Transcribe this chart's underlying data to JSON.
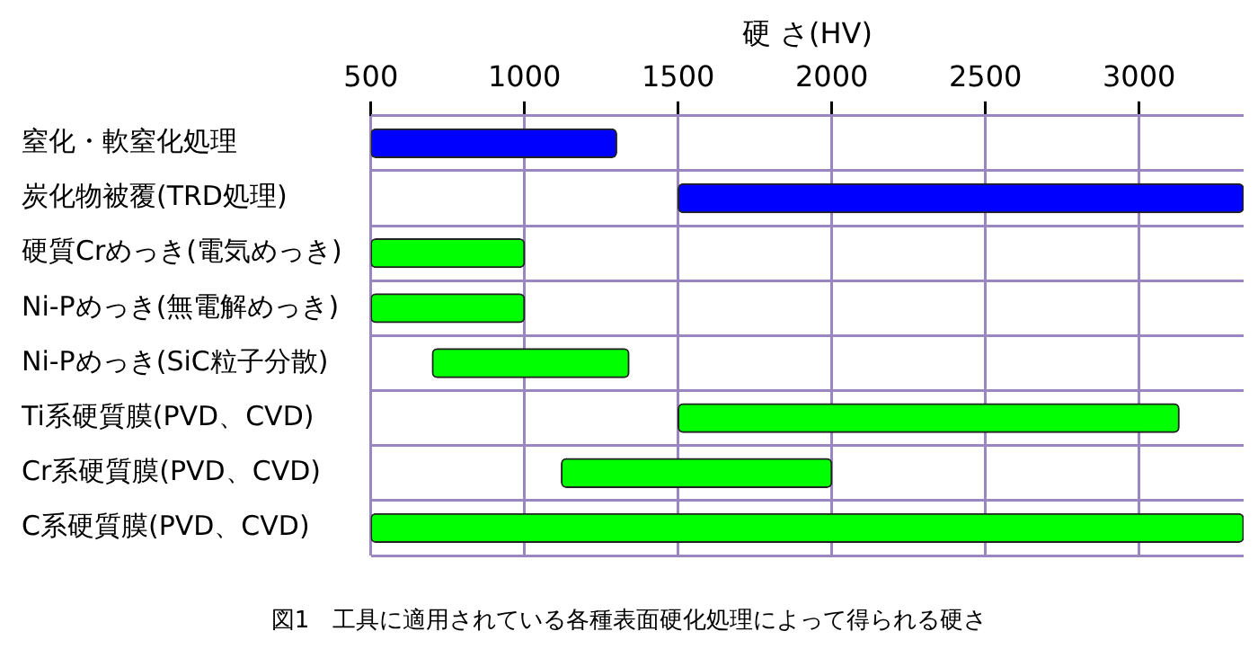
{
  "chart_data": {
    "type": "bar",
    "orientation": "horizontal",
    "xlabel": "硬 さ(HV)",
    "categories": [
      "窒化・軟窒化処理",
      "炭化物被覆(TRD処理)",
      "硬質Crめっき(電気めっき)",
      "Ni-Pめっき(無電解めっき)",
      "Ni-Pめっき(SiC粒子分散)",
      "Ti系硬質膜(PVD、CVD)",
      "Cr系硬質膜(PVD、CVD)",
      "C系硬質膜(PVD、CVD)"
    ],
    "base": [
      500,
      1500,
      500,
      500,
      700,
      1500,
      1120,
      500
    ],
    "values": [
      800,
      1840,
      500,
      500,
      640,
      1630,
      880,
      2840
    ],
    "colors": [
      "#0000ff",
      "#0000ff",
      "#00ff00",
      "#00ff00",
      "#00ff00",
      "#00ff00",
      "#00ff00",
      "#00ff00"
    ],
    "xlim": [
      500,
      3340
    ],
    "xticks": [
      500,
      1000,
      1500,
      2000,
      2500,
      3000
    ],
    "grid": true,
    "legend": false,
    "annotations": [
      "図1　工具に適用されている各種表面硬化処理によって得られる硬さ"
    ]
  }
}
